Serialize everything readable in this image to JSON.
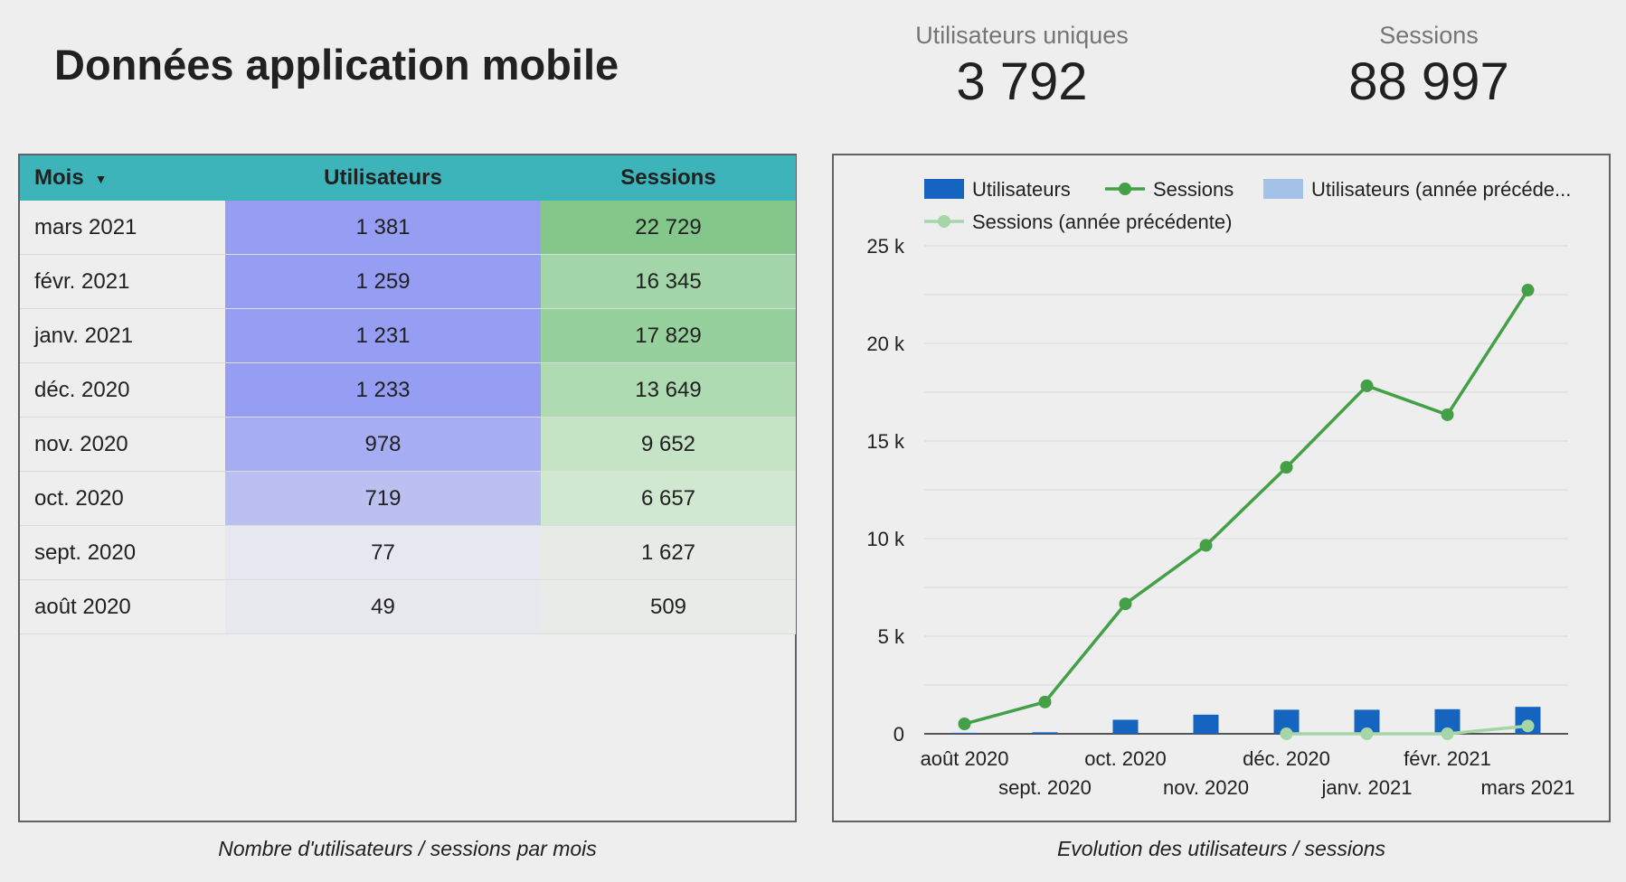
{
  "header": {
    "title": "Données application mobile",
    "kpi_users_label": "Utilisateurs uniques",
    "kpi_users_value": "3 792",
    "kpi_sessions_label": "Sessions",
    "kpi_sessions_value": "88 997"
  },
  "table": {
    "headers": [
      "Mois",
      "Utilisateurs",
      "Sessions"
    ],
    "rows": [
      {
        "mois": "mars 2021",
        "users": "1 381",
        "sessions": "22 729",
        "users_color": "#969ef3",
        "sessions_color": "#84c78a"
      },
      {
        "mois": "févr. 2021",
        "users": "1 259",
        "sessions": "16 345",
        "users_color": "#969ef3",
        "sessions_color": "#a2d5a7"
      },
      {
        "mois": "janv. 2021",
        "users": "1 231",
        "sessions": "17 829",
        "users_color": "#969ef3",
        "sessions_color": "#96d09c"
      },
      {
        "mois": "déc. 2020",
        "users": "1 233",
        "sessions": "13 649",
        "users_color": "#969ef3",
        "sessions_color": "#aedbb1"
      },
      {
        "mois": "nov. 2020",
        "users": "978",
        "sessions": "9 652",
        "users_color": "#a6adf3",
        "sessions_color": "#c4e4c5"
      },
      {
        "mois": "oct. 2020",
        "users": "719",
        "sessions": "6 657",
        "users_color": "#bcc0f1",
        "sessions_color": "#d0e8d0"
      },
      {
        "mois": "sept. 2020",
        "users": "77",
        "sessions": "1 627",
        "users_color": "#e6e7ef",
        "sessions_color": "#e6ebe6"
      },
      {
        "mois": "août 2020",
        "users": "49",
        "sessions": "509",
        "users_color": "#e8e8ef",
        "sessions_color": "#e8ece8"
      }
    ]
  },
  "captions": {
    "left": "Nombre d'utilisateurs / sessions par mois",
    "right": "Evolution des utilisateurs  / sessions"
  },
  "chart_data": {
    "type": "bar",
    "categories": [
      "août 2020",
      "sept. 2020",
      "oct. 2020",
      "nov. 2020",
      "déc. 2020",
      "janv. 2021",
      "févr. 2021",
      "mars 2021"
    ],
    "series": [
      {
        "name": "Utilisateurs",
        "kind": "bar",
        "color": "#1565c0",
        "values": [
          49,
          77,
          719,
          978,
          1233,
          1231,
          1259,
          1381
        ]
      },
      {
        "name": "Sessions",
        "kind": "line",
        "color": "#43a047",
        "values": [
          509,
          1627,
          6657,
          9652,
          13649,
          17829,
          16345,
          22729
        ]
      },
      {
        "name": "Utilisateurs (année précéde...",
        "kind": "bar",
        "color": "#a4c2e8",
        "values": [
          null,
          null,
          null,
          null,
          0,
          0,
          0,
          0
        ]
      },
      {
        "name": "Sessions (année précédente)",
        "kind": "line",
        "color": "#a5d6a7",
        "values": [
          null,
          null,
          null,
          null,
          0,
          0,
          0,
          400
        ]
      }
    ],
    "yticks": [
      "0",
      "5 k",
      "10 k",
      "15 k",
      "20 k",
      "25 k"
    ],
    "ylim": [
      0,
      25000
    ],
    "grid": true,
    "legend": "top"
  }
}
